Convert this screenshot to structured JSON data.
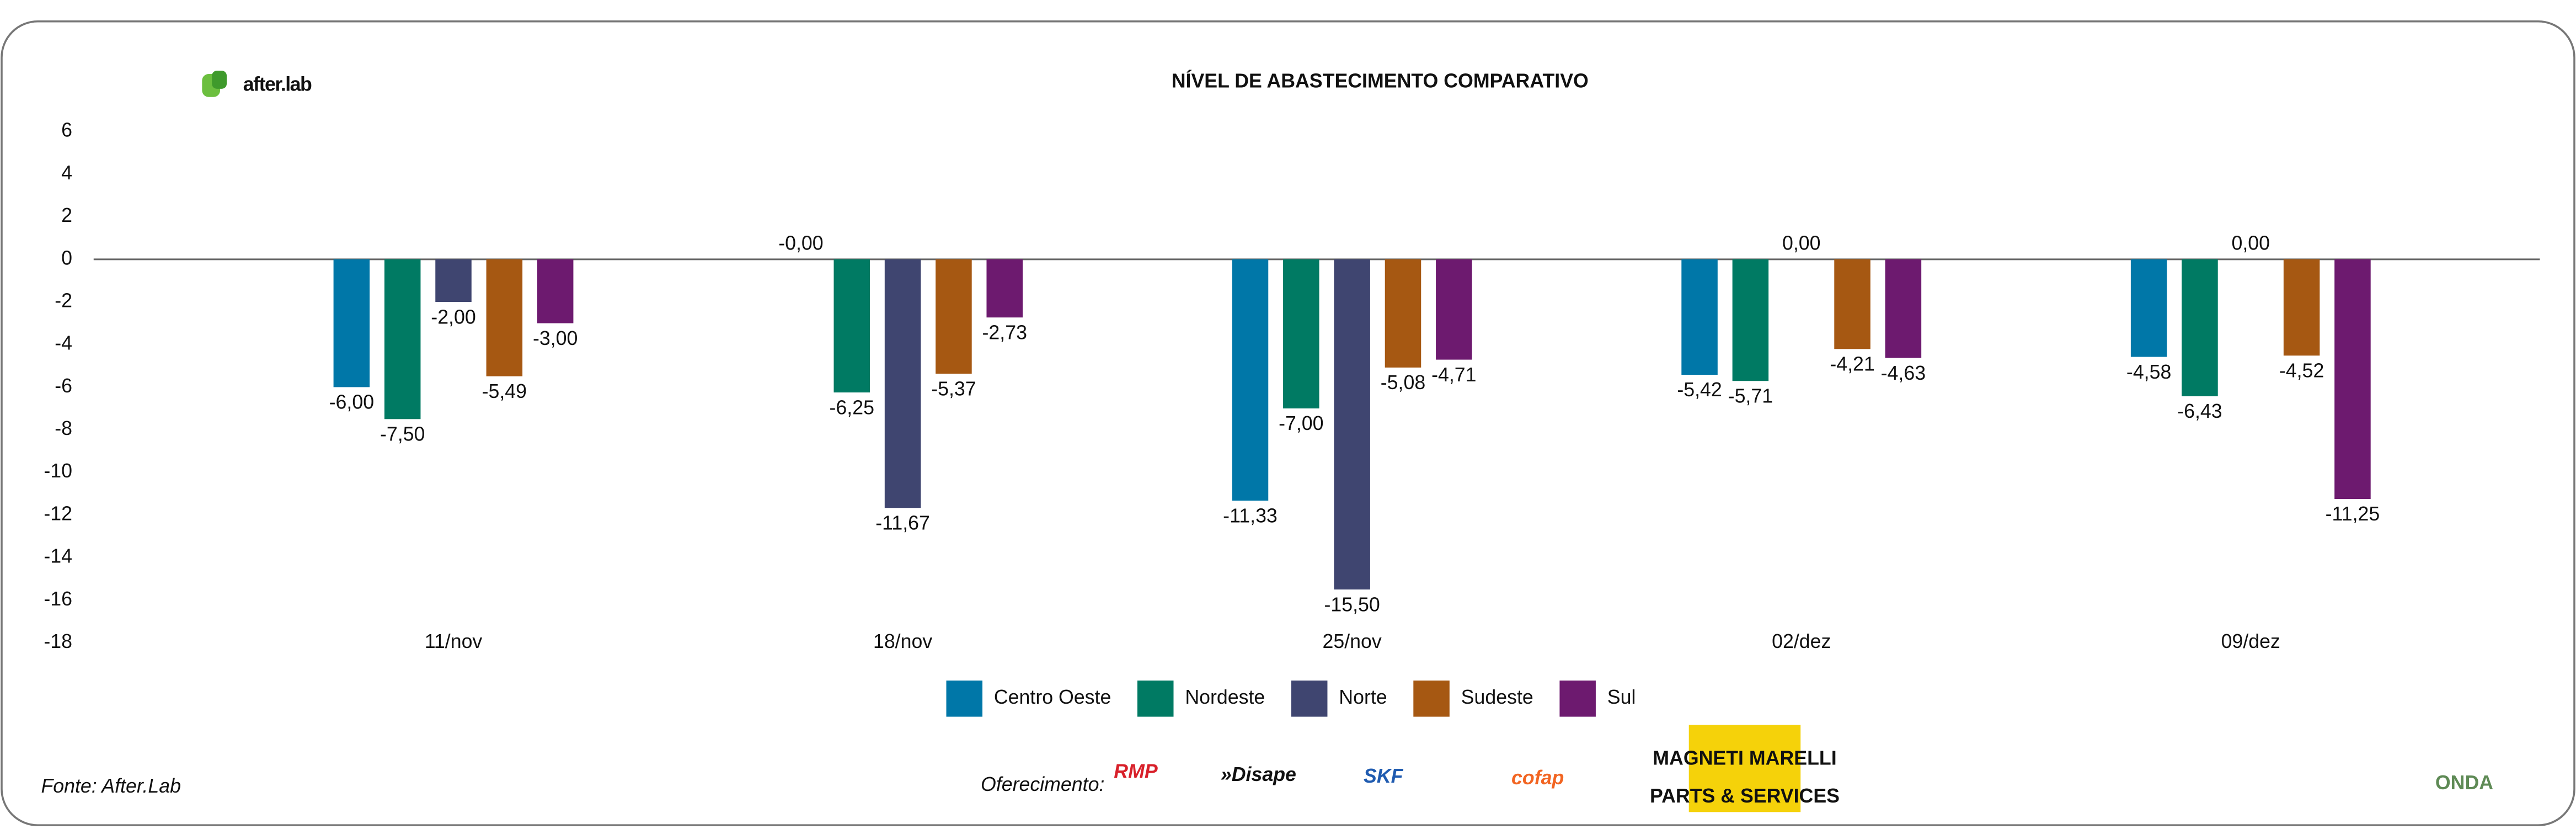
{
  "chart_data": {
    "type": "bar",
    "title": "NÍVEL DE ABASTECIMENTO COMPARATIVO",
    "brand": "after.lab",
    "categories": [
      "11/nov",
      "18/nov",
      "25/nov",
      "02/dez",
      "09/dez"
    ],
    "series": [
      {
        "name": "Centro Oeste",
        "color": "#0077a8",
        "values": [
          -6,
          0,
          -11.33,
          -5.42,
          -4.58
        ],
        "value_labels": [
          "-6,00",
          "-0,00",
          "-11,33",
          "-5,42",
          "-4,58"
        ]
      },
      {
        "name": "Nordeste",
        "color": "#007a63",
        "values": [
          -7.5,
          -6.25,
          -7,
          -5.71,
          -6.43
        ],
        "value_labels": [
          "-7,50",
          "-6,25",
          "-7,00",
          "-5,71",
          "-6,43"
        ]
      },
      {
        "name": "Norte",
        "color": "#3f4570",
        "values": [
          -2,
          -11.67,
          -15.5,
          0,
          0
        ],
        "value_labels": [
          "-2,00",
          "-11,67",
          "-15,50",
          "0,00",
          "0,00"
        ]
      },
      {
        "name": "Sudeste",
        "color": "#a65812",
        "values": [
          -5.49,
          -5.37,
          -5.08,
          -4.21,
          -4.52
        ],
        "value_labels": [
          "-5,49",
          "-5,37",
          "-5,08",
          "-4,21",
          "-4,52"
        ]
      },
      {
        "name": "Sul",
        "color": "#6d1a6f",
        "values": [
          -3,
          -2.73,
          -4.71,
          -4.63,
          -11.25
        ],
        "value_labels": [
          "-3,00",
          "-2,73",
          "-4,71",
          "-4,63",
          "-11,25"
        ]
      }
    ],
    "ylim": [
      -18,
      6
    ],
    "yticks": [
      6,
      4,
      2,
      0,
      -2,
      -4,
      -6,
      -8,
      -10,
      -12,
      -14,
      -16,
      -18
    ],
    "source": "Fonte: After.Lab",
    "sponsor_label": "Oferecimento:",
    "sponsors": [
      "RMP",
      "»Disape",
      "SKF",
      "cofap",
      "MAGNETI MARELLI",
      "PARTS & SERVICES"
    ],
    "footer_brand": "ONDA"
  }
}
